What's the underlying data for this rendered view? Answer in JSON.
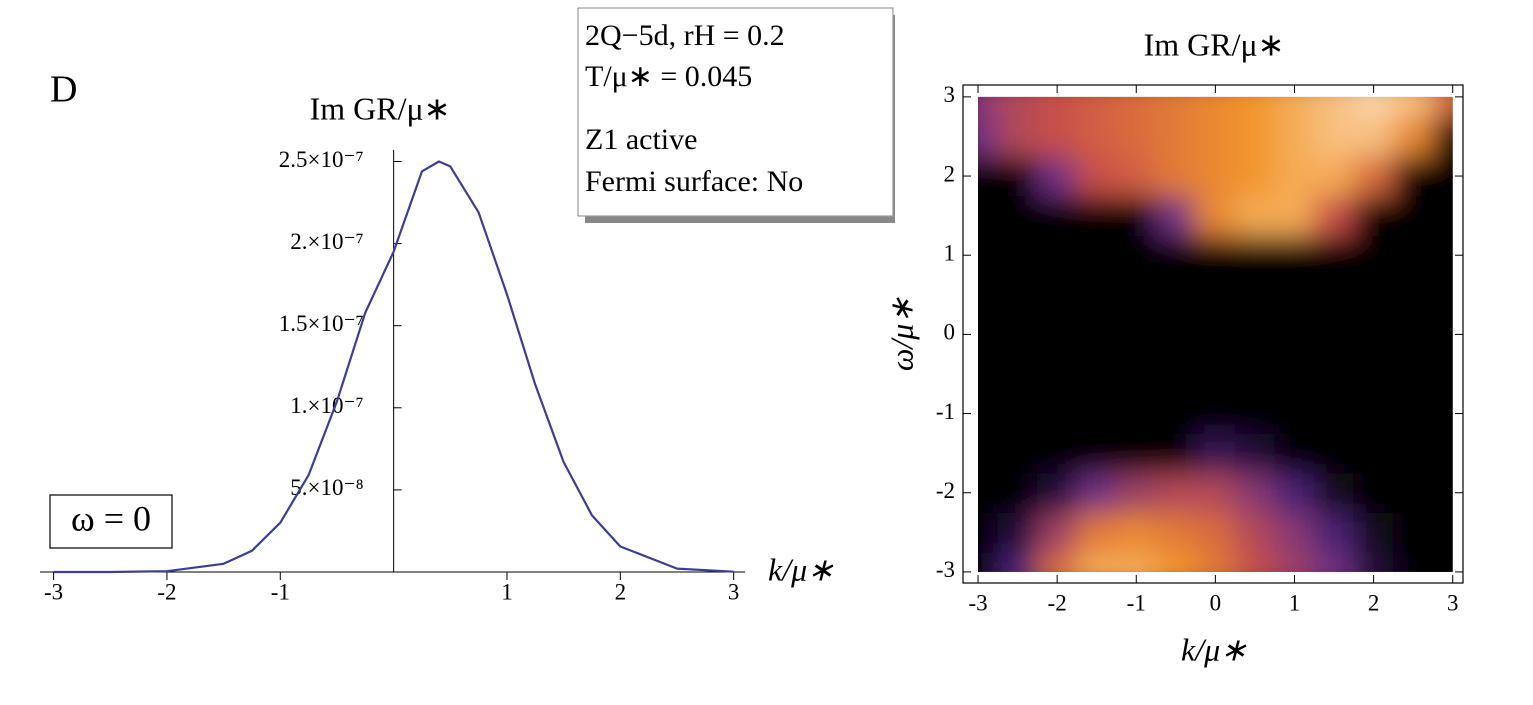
{
  "chart_data": [
    {
      "type": "line",
      "title": "Im GR/μ∗",
      "panel_label": "D",
      "annotation": "ω = 0",
      "xlabel": "k/μ∗",
      "info_box": [
        "2Q−5d,  rH = 0.2",
        "T/μ∗ = 0.045",
        "Z1 active",
        "Fermi surface: No"
      ],
      "x": [
        -3,
        -2.5,
        -2,
        -1.5,
        -1.25,
        -1,
        -0.75,
        -0.5,
        -0.25,
        0,
        0.25,
        0.4,
        0.5,
        0.75,
        1,
        1.25,
        1.5,
        1.75,
        2,
        2.5,
        3
      ],
      "series": [
        {
          "name": "Im GR/μ∗",
          "color": "#3b3f93",
          "values": [
            0,
            3e-11,
            5e-10,
            5e-09,
            1.3e-08,
            3e-08,
            5.9e-08,
            1.04e-07,
            1.58e-07,
            1.95e-07,
            2.44e-07,
            2.5e-07,
            2.47e-07,
            2.19e-07,
            1.69e-07,
            1.14e-07,
            6.7e-08,
            3.45e-08,
            1.55e-08,
            2.1e-09,
            2e-10
          ]
        }
      ],
      "xlim": [
        -3.12,
        3.1
      ],
      "ylim": [
        0,
        2.57e-07
      ],
      "xticks": [
        -3,
        -2,
        -1,
        1,
        2,
        3
      ],
      "yticks": [
        {
          "value": 5e-08,
          "label": "5.×10⁻⁸"
        },
        {
          "value": 1e-07,
          "label": "1.×10⁻⁷"
        },
        {
          "value": 1.5e-07,
          "label": "1.5×10⁻⁷"
        },
        {
          "value": 2e-07,
          "label": "2.×10⁻⁷"
        },
        {
          "value": 2.5e-07,
          "label": "2.5×10⁻⁷"
        }
      ]
    },
    {
      "type": "heatmap",
      "title": "Im GR/μ∗",
      "xlabel": "k/μ∗",
      "ylabel": "ω/μ∗",
      "colormap": [
        "#000000",
        "#5b2a91",
        "#c8504a",
        "#f3962a",
        "#ffffff"
      ],
      "x": [
        -3,
        -2.5,
        -2,
        -1.5,
        -1,
        -0.5,
        0,
        0.5,
        1,
        1.5,
        2,
        2.5,
        3
      ],
      "y": [
        -3,
        -2.5,
        -2,
        -1.5,
        -1,
        -0.5,
        0,
        0.5,
        1,
        1.5,
        2,
        2.5,
        3
      ],
      "values": [
        [
          0,
          0.2,
          0.6,
          0.8,
          0.8,
          0.75,
          0.65,
          0.5,
          0.4,
          0.3,
          0.1,
          0,
          0
        ],
        [
          0,
          0.1,
          0.4,
          0.65,
          0.7,
          0.65,
          0.6,
          0.45,
          0.35,
          0.2,
          0.05,
          0,
          0
        ],
        [
          0,
          0,
          0.1,
          0.3,
          0.4,
          0.45,
          0.45,
          0.35,
          0.2,
          0.05,
          0,
          0,
          0
        ],
        [
          0,
          0,
          0,
          0,
          0,
          0,
          0.15,
          0.1,
          0,
          0,
          0,
          0,
          0
        ],
        [
          0,
          0,
          0,
          0,
          0,
          0,
          0,
          0,
          0,
          0,
          0,
          0,
          0
        ],
        [
          0,
          0,
          0,
          0,
          0,
          0,
          0,
          0,
          0,
          0,
          0,
          0,
          0
        ],
        [
          0,
          0,
          0,
          0,
          0,
          0,
          0,
          0,
          0,
          0,
          0,
          0,
          0
        ],
        [
          0,
          0,
          0,
          0,
          0,
          0,
          0,
          0,
          0,
          0,
          0,
          0,
          0
        ],
        [
          0,
          0,
          0,
          0,
          0,
          0,
          0,
          0,
          0,
          0,
          0,
          0,
          0
        ],
        [
          0,
          0,
          0,
          0,
          0,
          0.3,
          0.7,
          0.8,
          0.8,
          0.5,
          0,
          0,
          0
        ],
        [
          0,
          0,
          0.3,
          0.5,
          0.55,
          0.65,
          0.7,
          0.75,
          0.8,
          0.8,
          0.6,
          0,
          0
        ],
        [
          0.3,
          0.45,
          0.5,
          0.55,
          0.6,
          0.65,
          0.7,
          0.75,
          0.8,
          0.85,
          0.85,
          0.7,
          0
        ],
        [
          0.35,
          0.45,
          0.5,
          0.55,
          0.6,
          0.65,
          0.7,
          0.75,
          0.8,
          0.85,
          0.9,
          0.85,
          0.6
        ]
      ],
      "xlim": [
        -3.19,
        3.13
      ],
      "ylim": [
        -3.14,
        3.15
      ],
      "xticks": [
        -3,
        -2,
        -1,
        0,
        1,
        2,
        3
      ],
      "yticks": [
        -3,
        -2,
        -1,
        0,
        1,
        2,
        3
      ]
    }
  ]
}
